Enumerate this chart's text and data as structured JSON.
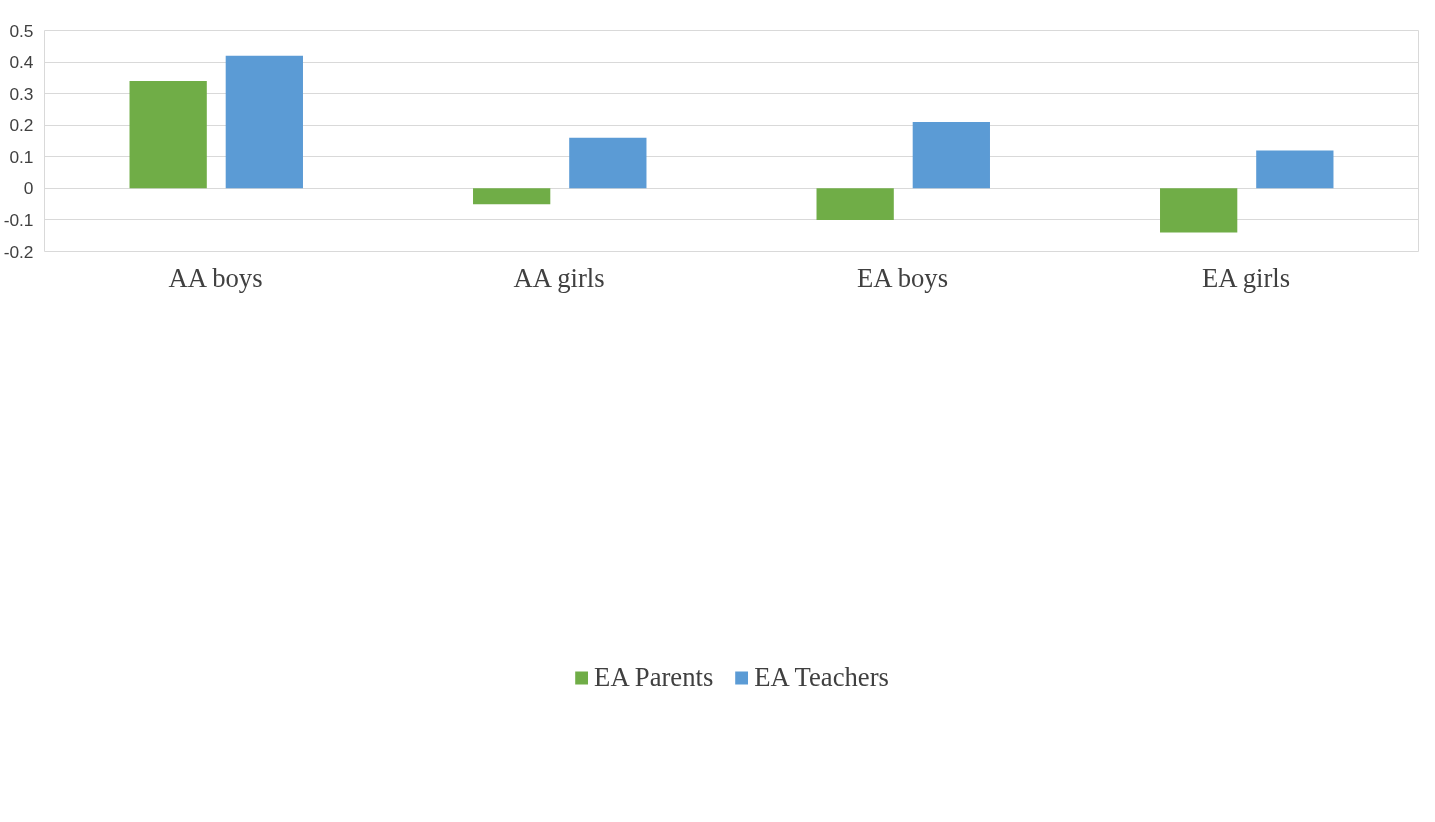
{
  "chart_data": {
    "type": "bar",
    "categories": [
      "AA boys",
      "AA girls",
      "EA boys",
      "EA girls"
    ],
    "series": [
      {
        "name": "EA Parents",
        "color": "#70ad47",
        "values": [
          0.34,
          -0.05,
          -0.1,
          -0.14
        ]
      },
      {
        "name": "EA Teachers",
        "color": "#5b9bd5",
        "values": [
          0.42,
          0.16,
          0.21,
          0.12
        ]
      }
    ],
    "ylim": [
      -0.2,
      0.5
    ],
    "yticks": [
      -0.2,
      -0.1,
      0,
      0.1,
      0.2,
      0.3,
      0.4,
      0.5
    ],
    "grid": "y",
    "legend": "bottom"
  }
}
